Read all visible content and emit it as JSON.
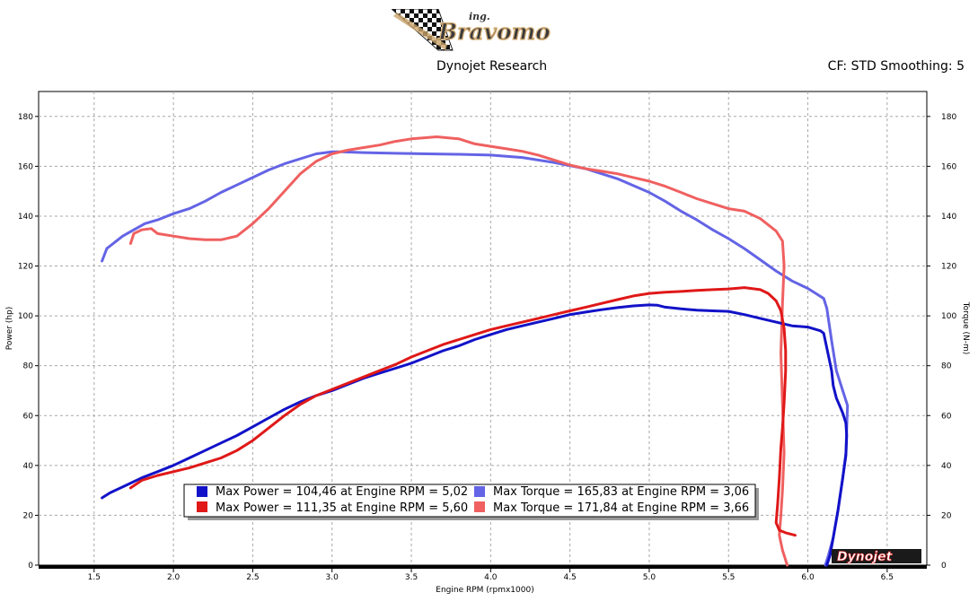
{
  "header": {
    "logo_small": "ing.",
    "logo_text": "Bravomo",
    "subtitle": "Dynojet Research",
    "cf": "CF: STD Smoothing: 5"
  },
  "watermark": "Dynojet",
  "chart_data": {
    "type": "line",
    "xlabel": "Engine RPM (rpmx1000)",
    "ylabel_left": "Power (hp)",
    "ylabel_right": "Torque (N-m)",
    "xlim": [
      1.15,
      6.75
    ],
    "ylim": [
      0,
      190
    ],
    "xticks": [
      "1.5",
      "2.0",
      "2.5",
      "3.0",
      "3.5",
      "4.0",
      "4.5",
      "5.0",
      "5.5",
      "6.0",
      "6.5"
    ],
    "yticks": [
      "0",
      "20",
      "40",
      "60",
      "80",
      "100",
      "120",
      "140",
      "160",
      "180"
    ],
    "grid": true,
    "legend_position": "bottom-center",
    "series": [
      {
        "axis": "left",
        "color": "#1212c8",
        "legend": "Max Power = 104,46 at Engine RPM = 5,02",
        "points": [
          [
            1.55,
            27
          ],
          [
            1.6,
            29
          ],
          [
            1.7,
            32
          ],
          [
            1.8,
            35
          ],
          [
            1.9,
            37.5
          ],
          [
            2.0,
            40
          ],
          [
            2.1,
            43
          ],
          [
            2.2,
            46
          ],
          [
            2.3,
            49
          ],
          [
            2.4,
            52
          ],
          [
            2.5,
            55.5
          ],
          [
            2.6,
            59
          ],
          [
            2.7,
            62.5
          ],
          [
            2.8,
            65.5
          ],
          [
            2.9,
            68
          ],
          [
            3.0,
            70
          ],
          [
            3.1,
            72.5
          ],
          [
            3.2,
            75
          ],
          [
            3.3,
            77
          ],
          [
            3.4,
            79
          ],
          [
            3.5,
            81
          ],
          [
            3.6,
            83.5
          ],
          [
            3.7,
            86
          ],
          [
            3.8,
            88
          ],
          [
            3.9,
            90.5
          ],
          [
            4.0,
            92.5
          ],
          [
            4.1,
            94.5
          ],
          [
            4.2,
            96
          ],
          [
            4.3,
            97.5
          ],
          [
            4.4,
            99
          ],
          [
            4.5,
            100.5
          ],
          [
            4.6,
            101.5
          ],
          [
            4.7,
            102.5
          ],
          [
            4.8,
            103.3
          ],
          [
            4.9,
            104
          ],
          [
            5.0,
            104.4
          ],
          [
            5.05,
            104.3
          ],
          [
            5.1,
            103.5
          ],
          [
            5.2,
            102.8
          ],
          [
            5.3,
            102.3
          ],
          [
            5.4,
            102
          ],
          [
            5.5,
            101.8
          ],
          [
            5.6,
            100.5
          ],
          [
            5.7,
            99
          ],
          [
            5.8,
            97.5
          ],
          [
            5.9,
            96
          ],
          [
            6.0,
            95.5
          ],
          [
            6.08,
            94
          ],
          [
            6.1,
            93
          ],
          [
            6.13,
            84
          ],
          [
            6.15,
            78
          ],
          [
            6.16,
            72
          ],
          [
            6.18,
            67
          ],
          [
            6.2,
            64
          ],
          [
            6.22,
            61
          ],
          [
            6.24,
            57
          ],
          [
            6.245,
            52
          ],
          [
            6.24,
            44
          ],
          [
            6.22,
            35
          ],
          [
            6.19,
            22
          ],
          [
            6.16,
            11
          ],
          [
            6.14,
            4
          ],
          [
            6.12,
            0
          ]
        ]
      },
      {
        "axis": "left",
        "color": "#e01818",
        "legend": "Max Power = 111,35 at Engine RPM = 5,60",
        "points": [
          [
            1.73,
            31
          ],
          [
            1.8,
            34
          ],
          [
            1.9,
            36
          ],
          [
            2.0,
            37.5
          ],
          [
            2.1,
            39
          ],
          [
            2.2,
            41
          ],
          [
            2.3,
            43
          ],
          [
            2.4,
            46
          ],
          [
            2.5,
            50
          ],
          [
            2.6,
            55
          ],
          [
            2.7,
            60
          ],
          [
            2.8,
            64.5
          ],
          [
            2.9,
            68
          ],
          [
            3.0,
            70.5
          ],
          [
            3.1,
            73
          ],
          [
            3.2,
            75.5
          ],
          [
            3.3,
            78
          ],
          [
            3.4,
            80.5
          ],
          [
            3.5,
            83.5
          ],
          [
            3.6,
            86
          ],
          [
            3.7,
            88.5
          ],
          [
            3.8,
            90.5
          ],
          [
            3.9,
            92.5
          ],
          [
            4.0,
            94.5
          ],
          [
            4.1,
            96
          ],
          [
            4.2,
            97.5
          ],
          [
            4.3,
            99
          ],
          [
            4.4,
            100.5
          ],
          [
            4.5,
            102
          ],
          [
            4.6,
            103.5
          ],
          [
            4.7,
            105
          ],
          [
            4.8,
            106.5
          ],
          [
            4.9,
            108
          ],
          [
            5.0,
            109
          ],
          [
            5.1,
            109.5
          ],
          [
            5.2,
            109.8
          ],
          [
            5.3,
            110.2
          ],
          [
            5.4,
            110.5
          ],
          [
            5.5,
            110.8
          ],
          [
            5.6,
            111.35
          ],
          [
            5.7,
            110.5
          ],
          [
            5.75,
            109
          ],
          [
            5.8,
            106
          ],
          [
            5.83,
            102
          ],
          [
            5.85,
            95
          ],
          [
            5.86,
            86
          ],
          [
            5.86,
            78
          ],
          [
            5.85,
            65
          ],
          [
            5.84,
            55
          ],
          [
            5.83,
            47
          ],
          [
            5.82,
            35
          ],
          [
            5.81,
            25
          ],
          [
            5.8,
            17
          ],
          [
            5.82,
            14
          ],
          [
            5.86,
            13
          ],
          [
            5.92,
            12
          ]
        ]
      },
      {
        "axis": "right",
        "color": "#6464e6",
        "legend": "Max Torque = 165,83 at Engine RPM = 3,06",
        "points": [
          [
            1.55,
            122
          ],
          [
            1.58,
            127
          ],
          [
            1.62,
            129
          ],
          [
            1.68,
            132
          ],
          [
            1.75,
            134.5
          ],
          [
            1.82,
            137
          ],
          [
            1.9,
            138.5
          ],
          [
            2.0,
            141
          ],
          [
            2.1,
            143
          ],
          [
            2.2,
            146
          ],
          [
            2.3,
            149.5
          ],
          [
            2.4,
            152.5
          ],
          [
            2.5,
            155.5
          ],
          [
            2.6,
            158.5
          ],
          [
            2.7,
            161
          ],
          [
            2.8,
            163
          ],
          [
            2.9,
            165
          ],
          [
            3.0,
            165.8
          ],
          [
            3.06,
            165.83
          ],
          [
            3.2,
            165.5
          ],
          [
            3.4,
            165.2
          ],
          [
            3.6,
            165
          ],
          [
            3.8,
            164.8
          ],
          [
            4.0,
            164.5
          ],
          [
            4.2,
            163.5
          ],
          [
            4.4,
            161.5
          ],
          [
            4.6,
            159
          ],
          [
            4.8,
            155
          ],
          [
            5.0,
            149.5
          ],
          [
            5.1,
            146
          ],
          [
            5.2,
            142
          ],
          [
            5.3,
            138.5
          ],
          [
            5.4,
            134.5
          ],
          [
            5.5,
            131
          ],
          [
            5.6,
            127
          ],
          [
            5.7,
            122.5
          ],
          [
            5.8,
            118
          ],
          [
            5.9,
            114
          ],
          [
            6.0,
            111
          ],
          [
            6.05,
            109
          ],
          [
            6.1,
            107
          ],
          [
            6.12,
            103
          ],
          [
            6.15,
            90
          ],
          [
            6.18,
            78
          ],
          [
            6.22,
            70
          ],
          [
            6.25,
            64
          ],
          [
            6.245,
            55
          ],
          [
            6.24,
            45
          ],
          [
            6.22,
            35
          ],
          [
            6.19,
            22
          ],
          [
            6.16,
            11
          ],
          [
            6.13,
            4
          ],
          [
            6.11,
            0
          ]
        ]
      },
      {
        "axis": "right",
        "color": "#f06060",
        "legend": "Max Torque = 171,84 at Engine RPM = 3,66",
        "points": [
          [
            1.73,
            129
          ],
          [
            1.75,
            133
          ],
          [
            1.8,
            134.5
          ],
          [
            1.86,
            135
          ],
          [
            1.9,
            133
          ],
          [
            2.0,
            132
          ],
          [
            2.1,
            131
          ],
          [
            2.2,
            130.5
          ],
          [
            2.3,
            130.5
          ],
          [
            2.4,
            132
          ],
          [
            2.5,
            137
          ],
          [
            2.6,
            143
          ],
          [
            2.7,
            150
          ],
          [
            2.8,
            157
          ],
          [
            2.9,
            162
          ],
          [
            3.0,
            165
          ],
          [
            3.1,
            166.5
          ],
          [
            3.2,
            167.5
          ],
          [
            3.3,
            168.5
          ],
          [
            3.4,
            170
          ],
          [
            3.5,
            171
          ],
          [
            3.6,
            171.5
          ],
          [
            3.66,
            171.84
          ],
          [
            3.8,
            171
          ],
          [
            3.9,
            169
          ],
          [
            4.0,
            168
          ],
          [
            4.1,
            167
          ],
          [
            4.2,
            166
          ],
          [
            4.3,
            164.5
          ],
          [
            4.4,
            162.5
          ],
          [
            4.5,
            160.5
          ],
          [
            4.6,
            159
          ],
          [
            4.7,
            158
          ],
          [
            4.8,
            157
          ],
          [
            4.9,
            155.5
          ],
          [
            5.0,
            154
          ],
          [
            5.1,
            152
          ],
          [
            5.2,
            149.5
          ],
          [
            5.3,
            147
          ],
          [
            5.4,
            145
          ],
          [
            5.5,
            143
          ],
          [
            5.6,
            142
          ],
          [
            5.7,
            139
          ],
          [
            5.8,
            134
          ],
          [
            5.84,
            130
          ],
          [
            5.85,
            120
          ],
          [
            5.84,
            105
          ],
          [
            5.83,
            85
          ],
          [
            5.84,
            65
          ],
          [
            5.85,
            45
          ],
          [
            5.84,
            30
          ],
          [
            5.83,
            20
          ],
          [
            5.82,
            12
          ],
          [
            5.84,
            6
          ],
          [
            5.87,
            0
          ]
        ]
      }
    ]
  }
}
